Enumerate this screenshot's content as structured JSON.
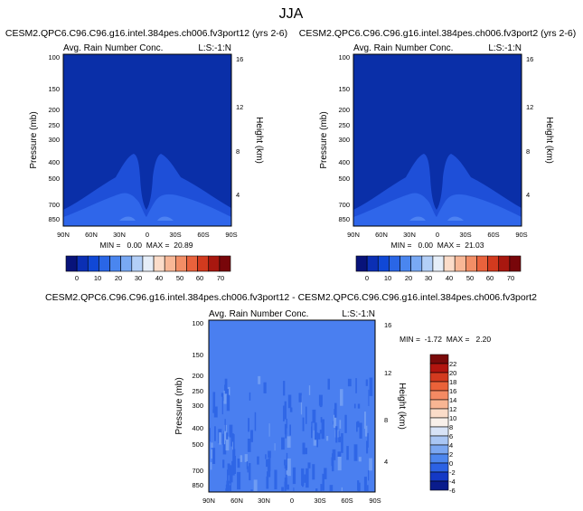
{
  "page_title": "JJA",
  "colors": {
    "field_dark": "#0a2fa8",
    "field_mid": "#1e4fd8",
    "field_light": "#2f66ea",
    "field_pale": "#4d82f2",
    "diff_bg": "#4a7ff0",
    "diff_dark": "#2f66e6"
  },
  "chart_data": [
    {
      "type": "heatmap",
      "id": "top-left",
      "title": "CESM2.QPC6.C96.C96.g16.intel.384pes.ch006.fv3port12 (yrs 2-6)",
      "inner_title": "Avg. Rain Number Conc.",
      "corner_label": "L:S:-1:N",
      "ylabel": "Pressure (mb)",
      "ylabel_right": "Height (km)",
      "y_ticks": [
        "100",
        "150",
        "200",
        "250",
        "300",
        "400",
        "500",
        "700",
        "850"
      ],
      "y_ticks_right": [
        "16",
        "12",
        "8",
        "4"
      ],
      "x_ticks": [
        "90N",
        "60N",
        "30N",
        "0",
        "30S",
        "60S",
        "90S"
      ],
      "stats": "MIN =   0.00  MAX =  20.89",
      "colorbar_labels": [
        "0",
        "10",
        "20",
        "30",
        "40",
        "50",
        "60",
        "70"
      ],
      "zlim": [
        0,
        75
      ]
    },
    {
      "type": "heatmap",
      "id": "top-right",
      "title": "CESM2.QPC6.C96.C96.g16.intel.384pes.ch006.fv3port2 (yrs 2-6)",
      "inner_title": "Avg. Rain Number Conc.",
      "corner_label": "L:S:-1:N",
      "ylabel": "Pressure (mb)",
      "ylabel_right": "Height (km)",
      "y_ticks": [
        "100",
        "150",
        "200",
        "250",
        "300",
        "400",
        "500",
        "700",
        "850"
      ],
      "y_ticks_right": [
        "16",
        "12",
        "8",
        "4"
      ],
      "x_ticks": [
        "90N",
        "60N",
        "30N",
        "0",
        "30S",
        "60S",
        "90S"
      ],
      "stats": "MIN =   0.00  MAX =  21.03",
      "colorbar_labels": [
        "0",
        "10",
        "20",
        "30",
        "40",
        "50",
        "60",
        "70"
      ],
      "zlim": [
        0,
        75
      ]
    },
    {
      "type": "heatmap",
      "id": "difference",
      "title": "CESM2.QPC6.C96.C96.g16.intel.384pes.ch006.fv3port12 - CESM2.QPC6.C96.C96.g16.intel.384pes.ch006.fv3port2",
      "inner_title": "Avg. Rain Number Conc.",
      "corner_label": "L:S:-1:N",
      "ylabel": "Pressure (mb)",
      "ylabel_right": "Height (km)",
      "y_ticks": [
        "100",
        "150",
        "200",
        "250",
        "300",
        "400",
        "500",
        "700",
        "850"
      ],
      "y_ticks_right": [
        "16",
        "12",
        "8",
        "4"
      ],
      "x_ticks": [
        "90N",
        "60N",
        "30N",
        "0",
        "30S",
        "60S",
        "90S"
      ],
      "stats": "MIN =  -1.72  MAX =   2.20",
      "colorbar_labels": [
        "22",
        "20",
        "18",
        "16",
        "14",
        "12",
        "10",
        "8",
        "6",
        "4",
        "2",
        "0",
        "-2",
        "-4",
        "-6"
      ],
      "zlim": [
        -7,
        23
      ]
    }
  ],
  "palettes": {
    "seq": [
      "#08137a",
      "#0b2fb4",
      "#1048d6",
      "#2a66e6",
      "#4a86ef",
      "#79a9f4",
      "#b3cff7",
      "#e6eef8",
      "#fbdcc9",
      "#f8b796",
      "#f28e66",
      "#e9623c",
      "#d23a1e",
      "#a8170f",
      "#78060a"
    ],
    "diff": [
      "#7a0a0a",
      "#b2150f",
      "#d33a1f",
      "#ea6239",
      "#f48a63",
      "#f8b593",
      "#fbdcc8",
      "#f8f0ea",
      "#d7e3f7",
      "#a9c6f4",
      "#7ba7f1",
      "#4d86ee",
      "#2c62e4",
      "#1439c6",
      "#0a1c8c"
    ]
  }
}
